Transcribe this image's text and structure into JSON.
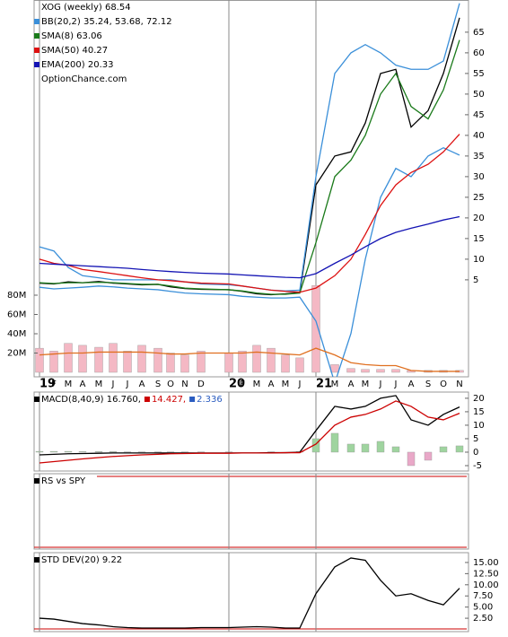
{
  "chart_data": [
    {
      "type": "line",
      "watermark": "OptionChance.com",
      "categories": [
        "19",
        "F",
        "M",
        "A",
        "M",
        "J",
        "J",
        "A",
        "S",
        "O",
        "N",
        "D",
        "20",
        "F",
        "M",
        "A",
        "M",
        "J",
        "21",
        "M",
        "A",
        "M",
        "J",
        "J",
        "A",
        "S",
        "O",
        "N"
      ],
      "series": [
        {
          "name": "XOG (weekly) 68.54",
          "color": "#000000",
          "values": [
            4.2,
            4.0,
            4.5,
            4.3,
            4.6,
            4.2,
            4.0,
            3.8,
            3.9,
            3.3,
            2.9,
            2.7,
            2.6,
            2.2,
            1.6,
            1.4,
            1.6,
            1.9,
            28,
            35,
            36,
            43,
            55,
            56,
            42,
            46,
            55,
            68.5
          ]
        },
        {
          "name": "BB(20,2) 35.24, 53.68, 72.12",
          "color": "#3a8fd9",
          "values": [
            13,
            12,
            8,
            6,
            5.5,
            5,
            5,
            5,
            5,
            5,
            4.5,
            4,
            3.8,
            3.5,
            3,
            2.5,
            2.3,
            2.5,
            30,
            55,
            60,
            62,
            60,
            57,
            56,
            56,
            58,
            72
          ]
        },
        {
          "color": "#3a8fd9",
          "values": [
            3.2,
            2.8,
            3.0,
            3.2,
            3.5,
            3.3,
            3.0,
            2.8,
            2.6,
            2.2,
            1.8,
            1.6,
            1.4,
            1.0,
            0.8,
            0.6,
            0.6,
            0.8,
            -5,
            -20,
            -8,
            10,
            25,
            32,
            30,
            35,
            37,
            35.2
          ]
        },
        {
          "name": "SMA(8) 63.06",
          "color": "#1a7a1a",
          "values": [
            4.3,
            4.1,
            4.3,
            4.3,
            4.4,
            4.3,
            4.1,
            3.9,
            3.9,
            3.5,
            3.0,
            2.8,
            2.6,
            2.3,
            1.8,
            1.5,
            1.5,
            1.8,
            14,
            30,
            34,
            40,
            50,
            55,
            47,
            44,
            51,
            63.1
          ]
        },
        {
          "name": "SMA(50) 40.27",
          "color": "#dd1111",
          "values": [
            10,
            9,
            8.5,
            7.5,
            7,
            6.5,
            6,
            5.5,
            5,
            4.8,
            4.5,
            4.2,
            4,
            3.5,
            3,
            2.5,
            2.2,
            2,
            3,
            6,
            10,
            16,
            23,
            28,
            31,
            33,
            36,
            40.3
          ]
        },
        {
          "name": "EMA(200) 20.33",
          "color": "#1414b4",
          "values": [
            9,
            8.8,
            8.6,
            8.4,
            8.2,
            8,
            7.8,
            7.5,
            7.2,
            7,
            6.8,
            6.6,
            6.4,
            6.2,
            6,
            5.8,
            5.6,
            5.5,
            6.5,
            9,
            11,
            13,
            15,
            16.5,
            17.5,
            18.5,
            19.5,
            20.3
          ]
        },
        {
          "type": "bar",
          "axis": "y2",
          "color": "#f4b8c4",
          "values": [
            25,
            22,
            30,
            28,
            26,
            30,
            22,
            28,
            25,
            20,
            18,
            22,
            20,
            22,
            28,
            25,
            18,
            15,
            90,
            8,
            4,
            3,
            3,
            3,
            2,
            2,
            2,
            2
          ]
        },
        {
          "axis": "y2",
          "color": "#e07020",
          "values": [
            18,
            19,
            20,
            20,
            21,
            21,
            21,
            21,
            20,
            19,
            19,
            20,
            20,
            20,
            21,
            20,
            19,
            18,
            25,
            18,
            10,
            8,
            7,
            7,
            2,
            1,
            1,
            1
          ]
        }
      ],
      "ylim": [
        -18.5,
        72.8
      ],
      "yticks": [
        5,
        10,
        15,
        20,
        25,
        30,
        35,
        40,
        45,
        50,
        55,
        60,
        65
      ],
      "y2lim": [
        -4.65,
        386
      ],
      "y2ticks": [
        {
          "value": 20,
          "label": "20M"
        },
        {
          "value": 40,
          "label": "40M"
        },
        {
          "value": 60,
          "label": "60M"
        },
        {
          "value": 80,
          "label": "80M"
        }
      ]
    },
    {
      "type": "line",
      "series": [
        {
          "name": "MACD(8,40,9) 16.760,",
          "color": "#000000",
          "values": [
            -1,
            -0.8,
            -0.6,
            -0.5,
            -0.4,
            -0.3,
            -0.3,
            -0.3,
            -0.3,
            -0.3,
            -0.3,
            -0.3,
            -0.3,
            -0.3,
            -0.3,
            -0.2,
            -0.2,
            0,
            8,
            17,
            16,
            17,
            20,
            21,
            12,
            10,
            14,
            16.76
          ]
        },
        {
          "name": "14.427,",
          "color": "#cc0000",
          "values": [
            -4,
            -3.5,
            -3,
            -2.5,
            -2,
            -1.6,
            -1.3,
            -1,
            -0.8,
            -0.6,
            -0.5,
            -0.4,
            -0.4,
            -0.3,
            -0.3,
            -0.3,
            -0.2,
            -0.2,
            3,
            10,
            13,
            14,
            16,
            19,
            17,
            13,
            12,
            14.43
          ]
        },
        {
          "name": "2.336",
          "type": "bar",
          "color": "#2a5cc0",
          "bar_colors": [
            "#9fd49f",
            "#e9a8c8"
          ],
          "values": [
            0.3,
            0.3,
            0.3,
            0.2,
            0.2,
            0.2,
            0.1,
            0.1,
            0.1,
            0.1,
            0.1,
            0.1,
            0.1,
            0,
            0,
            0.1,
            0,
            0.2,
            5,
            7,
            3,
            3,
            4,
            2,
            -5,
            -3,
            2,
            2.34
          ]
        }
      ],
      "ylim": [
        -7,
        22.3
      ],
      "yticks": [
        20,
        15,
        10,
        5,
        0,
        -5
      ]
    },
    {
      "type": "line",
      "title": "RS vs SPY"
    },
    {
      "type": "line",
      "series": [
        {
          "name": "STD DEV(20) 9.22",
          "color": "#000000",
          "values": [
            2.5,
            2.3,
            1.8,
            1.3,
            1.0,
            0.6,
            0.4,
            0.3,
            0.3,
            0.3,
            0.3,
            0.4,
            0.4,
            0.5,
            0.6,
            0.5,
            0.3,
            0.3,
            8,
            14,
            16,
            15.5,
            11,
            7.5,
            8,
            6.5,
            5.5,
            9.22
          ]
        }
      ],
      "ylim": [
        -0.5,
        17.2
      ],
      "yticks": [
        {
          "value": 15,
          "label": "15.00"
        },
        {
          "value": 12.5,
          "label": "12.50"
        },
        {
          "value": 10,
          "label": "10.00"
        },
        {
          "value": 7.5,
          "label": "7.50"
        },
        {
          "value": 5,
          "label": "5.00"
        },
        {
          "value": 2.5,
          "label": "2.50"
        }
      ]
    }
  ]
}
